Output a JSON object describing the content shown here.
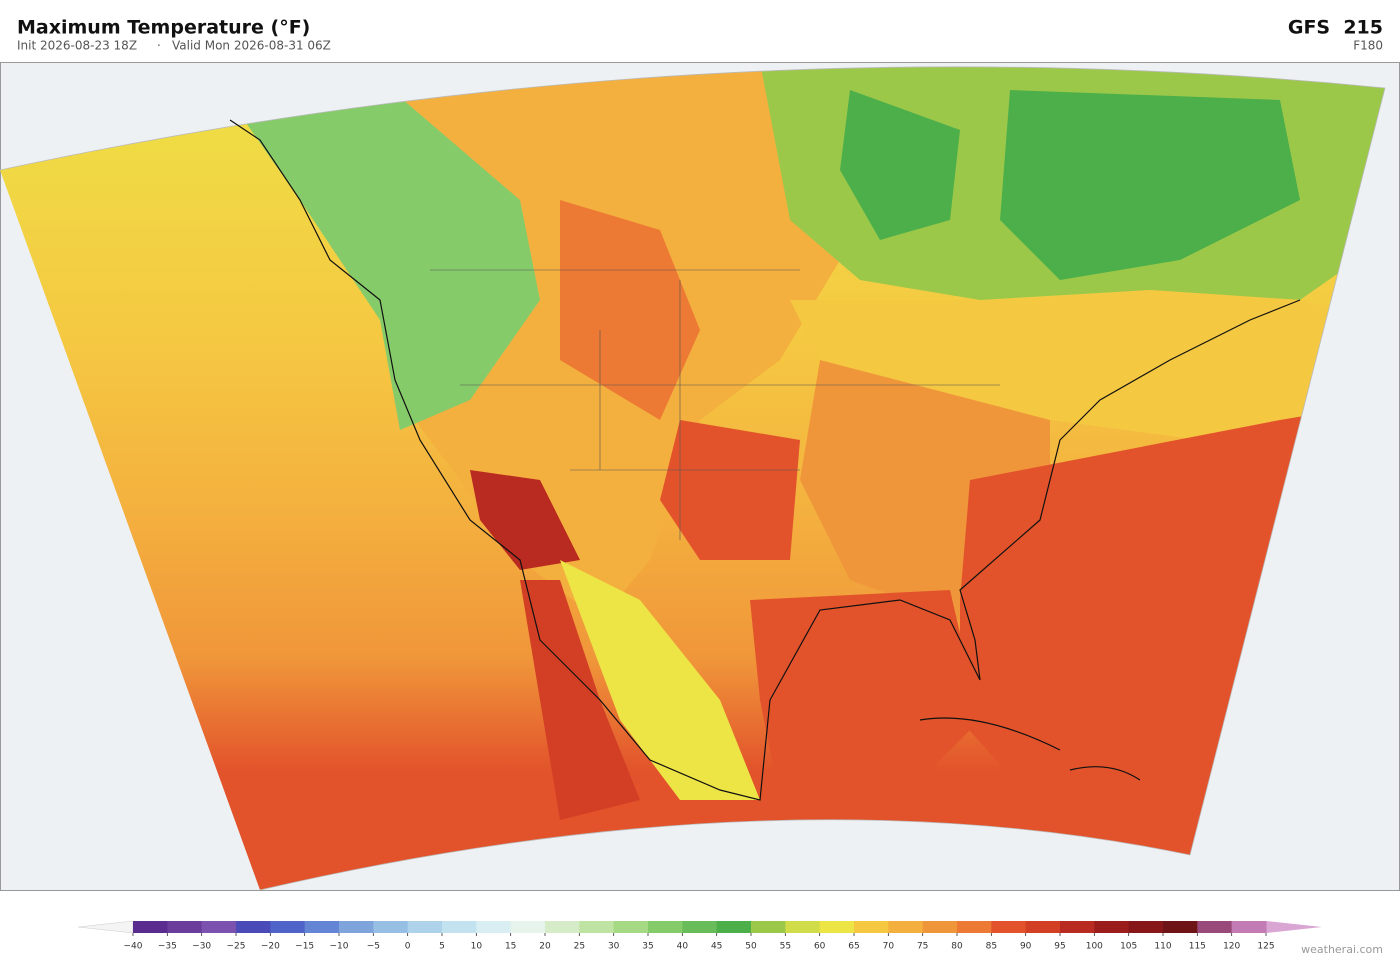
{
  "header": {
    "title": "Maximum Temperature  (°F)",
    "init": "Init 2026-08-23 18Z",
    "valid": "Valid Mon 2026-08-31 06Z",
    "model": "GFS  215",
    "forecast_hour": "F180"
  },
  "colorbar": {
    "ticks": [
      {
        "value": -40,
        "label": "−40"
      },
      {
        "value": -35,
        "label": "−35"
      },
      {
        "value": -30,
        "label": "−30"
      },
      {
        "value": -25,
        "label": "−25"
      },
      {
        "value": -20,
        "label": "−20"
      },
      {
        "value": -15,
        "label": "−15"
      },
      {
        "value": -10,
        "label": "−10"
      },
      {
        "value": -5,
        "label": "−5"
      },
      0,
      5,
      10,
      15,
      20,
      25,
      30,
      35,
      40,
      45,
      50,
      55,
      60,
      65,
      70,
      75,
      80,
      85,
      90,
      95,
      100,
      105,
      110,
      115,
      120,
      125
    ],
    "colors": [
      "#5b2c8f",
      "#6a3d9a",
      "#7b52ad",
      "#4a4ab8",
      "#4f63c9",
      "#6485d3",
      "#7fa4dc",
      "#96bfe3",
      "#aed2ea",
      "#c3e2ef",
      "#d9eef3",
      "#e6f4ec",
      "#d6ecc8",
      "#bfe3a2",
      "#a5d983",
      "#86cb6a",
      "#68bd5a",
      "#4caf4a",
      "#9cc84a",
      "#d0dc48",
      "#ede446",
      "#f5c842",
      "#f4b03e",
      "#f0963a",
      "#ec7a34",
      "#e2532b",
      "#d23f25",
      "#b92a20",
      "#9b1d1b",
      "#861618",
      "#6f1416",
      "#9a4a7a",
      "#c27bb5"
    ],
    "under_color": "#f4f4f4",
    "over_color": "#d9a6d4"
  },
  "watermark": "weatherai.com"
}
